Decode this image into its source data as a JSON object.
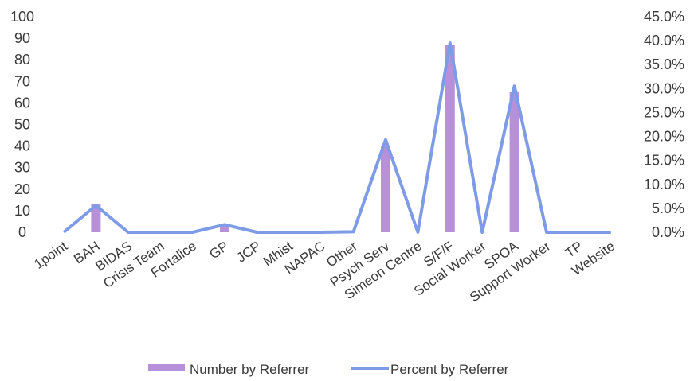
{
  "chart_data": {
    "type": "bar",
    "categories": [
      "1point",
      "BAH",
      "BIDAS",
      "Crisis Team",
      "Fortalice",
      "GP",
      "JCP",
      "Mhist",
      "NAPAC",
      "Other",
      "Psych Serv",
      "Simeon Centre",
      "S/F/F",
      "Social Worker",
      "SPOA",
      "Support Worker",
      "TP",
      "Website"
    ],
    "y_ticks": [
      "0",
      "10",
      "20",
      "30",
      "40",
      "50",
      "60",
      "70",
      "80",
      "90",
      "100"
    ],
    "y2_ticks": [
      "0.0%",
      "5.0%",
      "10.0%",
      "15.0%",
      "20.0%",
      "25.0%",
      "30.0%",
      "35.0%",
      "40.0%",
      "45.0%"
    ],
    "ylim": [
      0,
      100
    ],
    "y2lim": [
      0,
      45
    ],
    "series": [
      {
        "name": "Number by Referrer",
        "type": "bar",
        "axis": "left",
        "color": "#b88fd9",
        "values": [
          0,
          13,
          0,
          0,
          0,
          4,
          0,
          0,
          0,
          0,
          40,
          0,
          87,
          0,
          65,
          0,
          0,
          0
        ]
      },
      {
        "name": "Percent by Referrer",
        "type": "line",
        "axis": "right",
        "color": "#7e9be6",
        "values": [
          0.0,
          5.6,
          0.0,
          0.0,
          0.0,
          1.6,
          0.0,
          0.0,
          0.0,
          0.1,
          19.3,
          0.0,
          39.5,
          0.0,
          30.5,
          0.0,
          0.0,
          0.0
        ]
      }
    ],
    "legend_position": "bottom",
    "grid": false
  }
}
